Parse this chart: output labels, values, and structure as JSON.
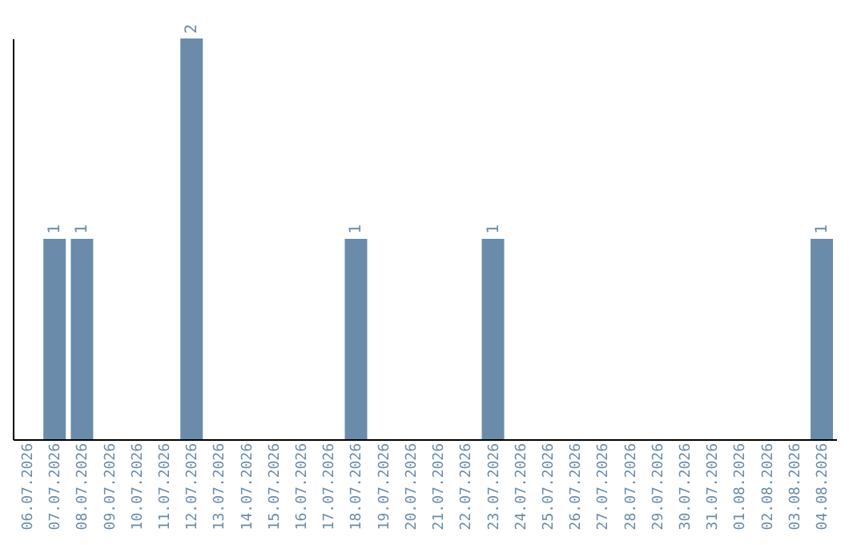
{
  "chart_data": {
    "type": "bar",
    "categories": [
      "06.07.2026",
      "07.07.2026",
      "08.07.2026",
      "09.07.2026",
      "10.07.2026",
      "11.07.2026",
      "12.07.2026",
      "13.07.2026",
      "14.07.2026",
      "15.07.2026",
      "16.07.2026",
      "17.07.2026",
      "18.07.2026",
      "19.07.2026",
      "20.07.2026",
      "21.07.2026",
      "22.07.2026",
      "23.07.2026",
      "24.07.2026",
      "25.07.2026",
      "26.07.2026",
      "27.07.2026",
      "28.07.2026",
      "29.07.2026",
      "30.07.2026",
      "31.07.2026",
      "01.08.2026",
      "02.08.2026",
      "03.08.2026",
      "04.08.2026"
    ],
    "values": [
      0,
      1,
      1,
      0,
      0,
      0,
      2,
      0,
      0,
      0,
      0,
      0,
      1,
      0,
      0,
      0,
      0,
      1,
      0,
      0,
      0,
      0,
      0,
      0,
      0,
      0,
      0,
      0,
      0,
      1
    ],
    "value_labels": [
      null,
      "1",
      "1",
      null,
      null,
      null,
      "2",
      null,
      null,
      null,
      null,
      null,
      "1",
      null,
      null,
      null,
      null,
      "1",
      null,
      null,
      null,
      null,
      null,
      null,
      null,
      null,
      null,
      null,
      null,
      "1"
    ],
    "color": "#6a8caa",
    "ylim": [
      0,
      2
    ],
    "tick_labels": "x",
    "grid": false
  }
}
